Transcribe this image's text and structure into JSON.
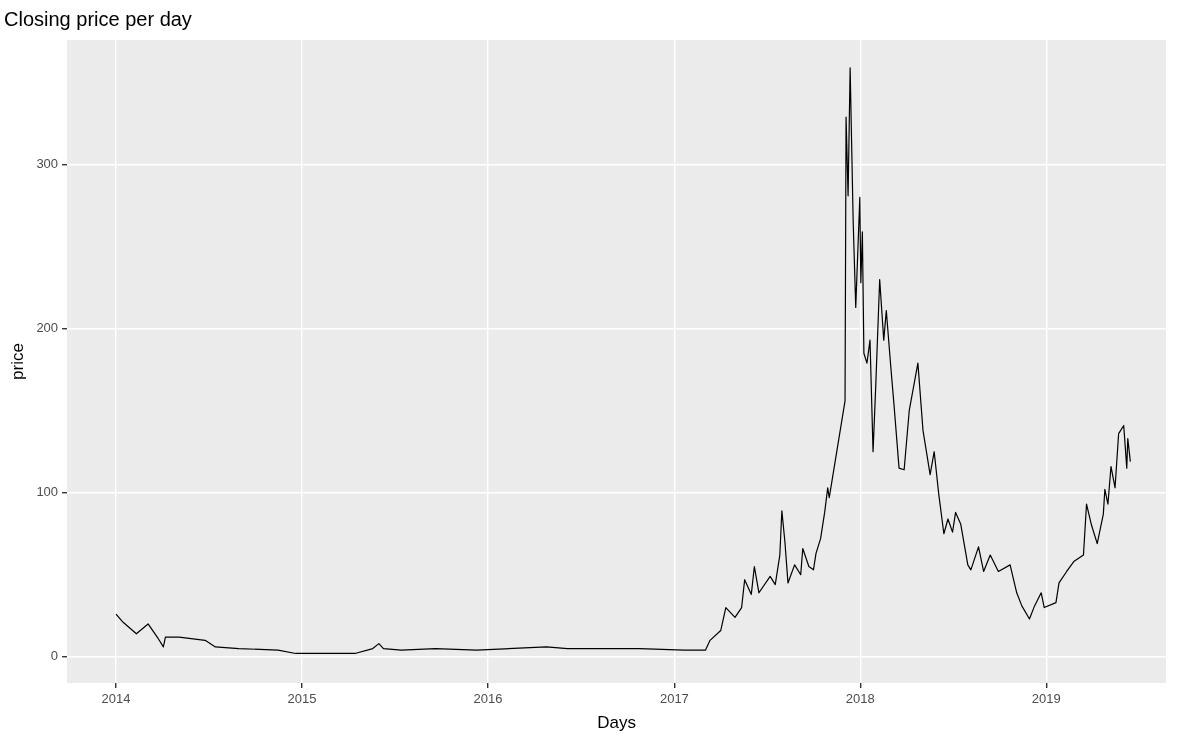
{
  "chart_data": {
    "type": "line",
    "title": "Closing price per day",
    "xlabel": "Days",
    "ylabel": "price",
    "x": [
      "2014-01-01",
      "2014-01-15",
      "2014-02-10",
      "2014-03-05",
      "2014-03-25",
      "2014-04-04",
      "2014-04-08",
      "2014-05-05",
      "2014-06-25",
      "2014-07-15",
      "2014-08-30",
      "2014-11-15",
      "2014-12-20",
      "2015-03-10",
      "2015-04-15",
      "2015-05-20",
      "2015-06-01",
      "2015-06-10",
      "2015-07-15",
      "2015-09-20",
      "2015-12-10",
      "2016-04-25",
      "2016-06-05",
      "2016-10-25",
      "2017-01-20",
      "2017-03-03",
      "2017-03-12",
      "2017-04-02",
      "2017-04-12",
      "2017-04-30",
      "2017-05-13",
      "2017-05-19",
      "2017-06-01",
      "2017-06-07",
      "2017-06-16",
      "2017-07-08",
      "2017-07-18",
      "2017-07-27",
      "2017-07-31",
      "2017-08-06",
      "2017-08-12",
      "2017-08-25",
      "2017-09-06",
      "2017-09-10",
      "2017-09-22",
      "2017-10-01",
      "2017-10-06",
      "2017-10-15",
      "2017-10-23",
      "2017-10-29",
      "2017-11-01",
      "2017-12-02",
      "2017-12-04",
      "2017-12-08",
      "2017-12-12",
      "2017-12-18",
      "2017-12-23",
      "2017-12-31",
      "2018-01-02",
      "2018-01-05",
      "2018-01-08",
      "2018-01-14",
      "2018-01-20",
      "2018-01-26",
      "2018-01-31",
      "2018-02-08",
      "2018-02-16",
      "2018-02-21",
      "2018-03-02",
      "2018-03-08",
      "2018-03-18",
      "2018-03-28",
      "2018-04-07",
      "2018-04-24",
      "2018-05-04",
      "2018-05-18",
      "2018-05-26",
      "2018-06-04",
      "2018-06-14",
      "2018-06-22",
      "2018-07-01",
      "2018-07-07",
      "2018-07-17",
      "2018-07-31",
      "2018-08-06",
      "2018-08-21",
      "2018-08-31",
      "2018-09-13",
      "2018-09-29",
      "2018-10-22",
      "2018-11-04",
      "2018-11-14",
      "2018-11-29",
      "2018-12-09",
      "2018-12-22",
      "2018-12-28",
      "2019-01-20",
      "2019-01-26",
      "2019-02-10",
      "2019-02-24",
      "2019-03-15",
      "2019-03-21",
      "2019-03-31",
      "2019-04-11",
      "2019-04-23",
      "2019-04-26",
      "2019-05-02",
      "2019-05-08",
      "2019-05-16",
      "2019-05-23",
      "2019-06-02",
      "2019-06-08",
      "2019-06-10",
      "2019-06-15"
    ],
    "series": [
      {
        "color": "#000000",
        "values": [
          26,
          21,
          14,
          20,
          11,
          6,
          12,
          12,
          10,
          6,
          5,
          4,
          2,
          2,
          2,
          5,
          8,
          5,
          4,
          5,
          4,
          6,
          5,
          5,
          4,
          4,
          10,
          16,
          30,
          24,
          30,
          47,
          38,
          55,
          39,
          49,
          44,
          62,
          89,
          70,
          45,
          56,
          50,
          66,
          55,
          53,
          63,
          72,
          88,
          103,
          97,
          156,
          329,
          281,
          359,
          265,
          213,
          280,
          228,
          259,
          185,
          179,
          193,
          125,
          163,
          230,
          193,
          211,
          176,
          154,
          115,
          114,
          150,
          179,
          138,
          111,
          125,
          99,
          75,
          84,
          76,
          88,
          81,
          56,
          53,
          67,
          52,
          62,
          52,
          56,
          39,
          31,
          23,
          31,
          39,
          30,
          33,
          45,
          52,
          58,
          62,
          93,
          80,
          69,
          87,
          102,
          93,
          116,
          103,
          136,
          141,
          115,
          133,
          119
        ]
      }
    ],
    "xlim": [
      "2013-09-27",
      "2019-08-24"
    ],
    "xticks": [
      "2014",
      "2015",
      "2016",
      "2017",
      "2018",
      "2019"
    ],
    "ylim": [
      -16,
      376
    ],
    "yticks": [
      0,
      100,
      200,
      300
    ],
    "grid": true,
    "marker": "none",
    "line_style": "solid"
  }
}
